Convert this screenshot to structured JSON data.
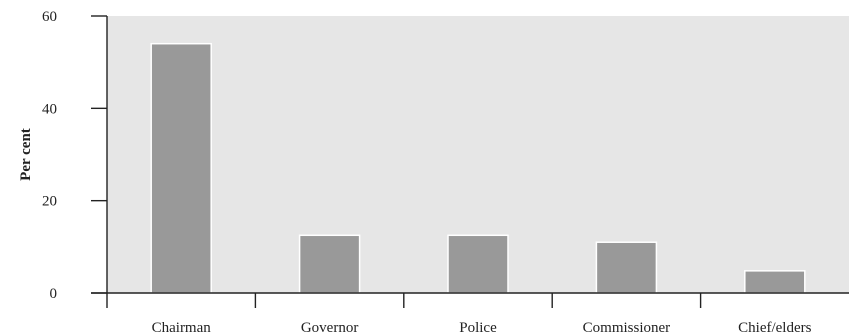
{
  "chart_data": {
    "type": "bar",
    "categories": [
      "Chairman",
      "Governor",
      "Police",
      "Commissioner",
      "Chief/elders"
    ],
    "values": [
      54,
      12.5,
      12.5,
      11,
      4.8
    ],
    "xlabel": "",
    "ylabel": "Per cent",
    "ylim": [
      0,
      60
    ],
    "yticks": [
      0,
      20,
      40,
      60
    ],
    "grid": false,
    "legend": "none",
    "colors": {
      "plot_background": "#e6e6e6",
      "bar_fill": "#999999",
      "bar_edge": "#ffffff",
      "axis": "#222222"
    }
  }
}
